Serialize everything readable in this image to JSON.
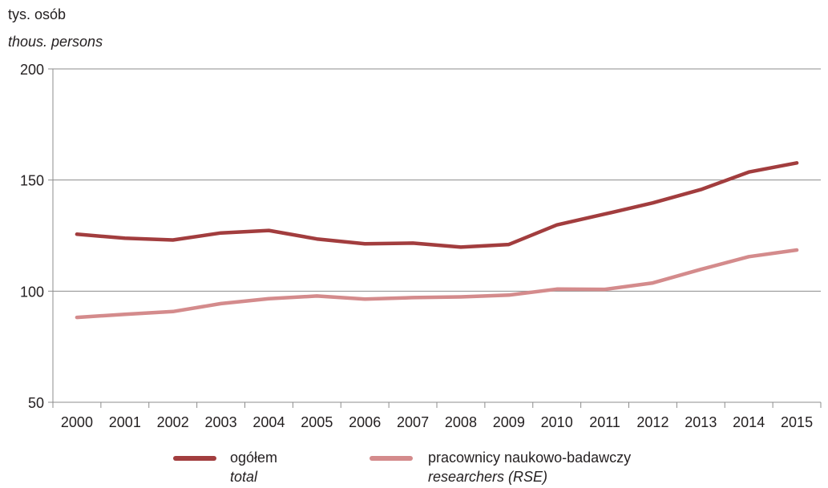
{
  "unit_label": {
    "pl": "tys. osób",
    "en": "thous. persons"
  },
  "legend": [
    {
      "pl": "ogółem",
      "en": "total",
      "color": "#a23d3e"
    },
    {
      "pl": "pracownicy naukowo-badawczy",
      "en": "researchers (RSE)",
      "color": "#d48b8c"
    }
  ],
  "chart_data": {
    "type": "line",
    "categories": [
      "2000",
      "2001",
      "2002",
      "2003",
      "2004",
      "2005",
      "2006",
      "2007",
      "2008",
      "2009",
      "2010",
      "2011",
      "2012",
      "2013",
      "2014",
      "2015"
    ],
    "series": [
      {
        "name": "ogółem / total",
        "color": "#a23d3e",
        "values": [
          125.6,
          123.8,
          123.0,
          126.2,
          127.3,
          123.5,
          121.3,
          121.6,
          119.8,
          121.0,
          129.8,
          134.7,
          139.7,
          145.7,
          153.6,
          157.7
        ]
      },
      {
        "name": "pracownicy naukowo-badawczy / researchers (RSE)",
        "color": "#d48b8c",
        "values": [
          88.2,
          89.6,
          90.8,
          94.4,
          96.6,
          97.8,
          96.4,
          97.1,
          97.4,
          98.2,
          100.9,
          100.8,
          103.7,
          109.8,
          115.5,
          118.5
        ]
      }
    ],
    "yticks": [
      50,
      100,
      150,
      200
    ],
    "ylim": [
      50,
      200
    ],
    "grid": true,
    "legend_position": "bottom"
  }
}
